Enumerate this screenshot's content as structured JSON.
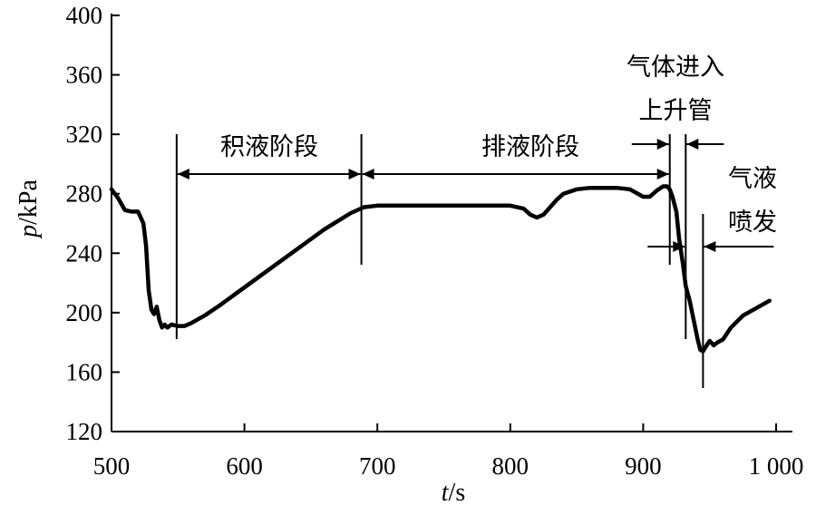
{
  "chart_data": {
    "type": "line",
    "xlabel": {
      "var": "t",
      "unit": "/s"
    },
    "ylabel": {
      "var": "p",
      "unit": "/kPa"
    },
    "xlim": [
      500,
      1000
    ],
    "ylim": [
      120,
      400
    ],
    "x_ticks": [
      500,
      600,
      700,
      800,
      900,
      1000
    ],
    "x_tick_labels": [
      "500",
      "600",
      "700",
      "800",
      "900",
      "1 000"
    ],
    "y_ticks": [
      120,
      160,
      200,
      240,
      280,
      320,
      360,
      400
    ],
    "y_tick_labels": [
      "120",
      "160",
      "200",
      "240",
      "280",
      "320",
      "360",
      "400"
    ],
    "grid": false,
    "series": [
      {
        "x": [
          500,
          505,
          510,
          515,
          520,
          524,
          526,
          528,
          530,
          532,
          534,
          536,
          538,
          540,
          542,
          545,
          550,
          555,
          560,
          570,
          580,
          600,
          620,
          640,
          660,
          680,
          690,
          700,
          720,
          750,
          780,
          800,
          810,
          815,
          820,
          825,
          830,
          835,
          840,
          850,
          860,
          870,
          880,
          890,
          900,
          905,
          910,
          915,
          918,
          920,
          922,
          925,
          927,
          930,
          932,
          935,
          938,
          941,
          943,
          945,
          947,
          950,
          953,
          956,
          960,
          966,
          975,
          985,
          995
        ],
        "y": [
          283,
          277,
          269,
          268,
          268,
          260,
          245,
          215,
          202,
          199,
          204,
          195,
          190,
          192,
          190,
          192,
          191,
          191,
          193,
          198,
          204,
          217,
          230,
          243,
          256,
          267,
          271,
          272,
          272,
          272,
          272,
          272,
          270,
          266,
          264,
          266,
          271,
          276,
          280,
          283,
          284,
          284,
          284,
          283,
          278,
          278,
          282,
          285,
          285,
          283,
          278,
          268,
          250,
          232,
          218,
          208,
          195,
          182,
          175,
          174,
          177,
          181,
          178,
          180,
          182,
          190,
          198,
          203,
          208
        ]
      }
    ],
    "markers": [
      549,
      688,
      920,
      932,
      945
    ],
    "annotations": {
      "phase1": "积液阶段",
      "phase2": "排液阶段",
      "phase3_line1": "气体进入",
      "phase3_line2": "上升管",
      "phase4_line1": "气液",
      "phase4_line2": "喷发"
    }
  }
}
